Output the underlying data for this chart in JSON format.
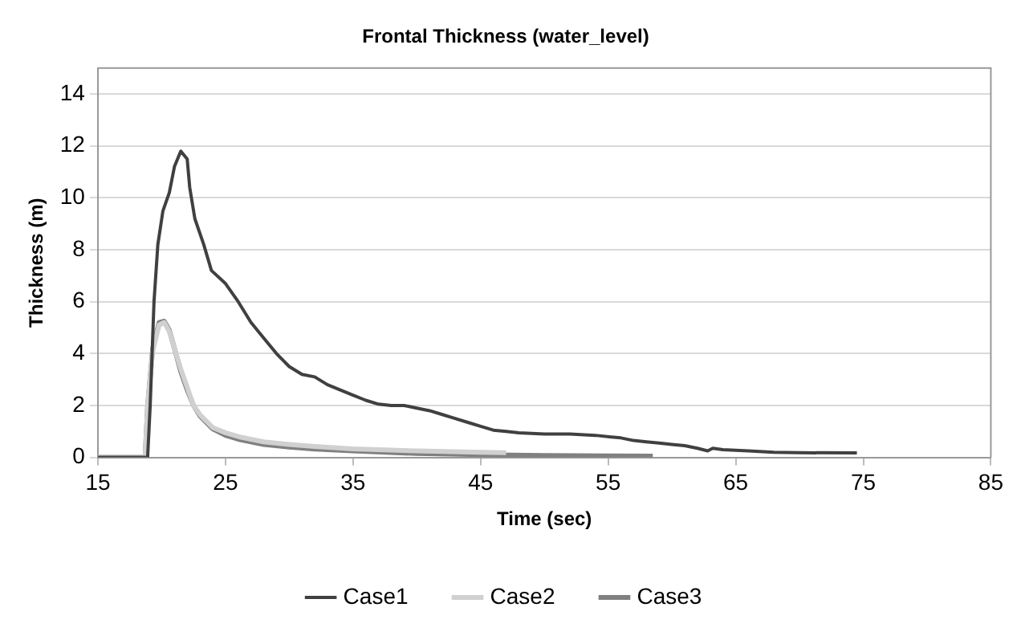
{
  "chart_data": {
    "type": "line",
    "title": "Frontal Thickness (water_level)",
    "xlabel": "Time (sec)",
    "ylabel": "Thickness (m)",
    "xlim": [
      15,
      85
    ],
    "xticks": [
      15,
      25,
      35,
      45,
      55,
      65,
      75,
      85
    ],
    "ylim": [
      0,
      15
    ],
    "yticks": [
      0,
      2,
      4,
      6,
      8,
      10,
      12,
      14
    ],
    "grid": "y",
    "legend": "bottom",
    "marker": "none",
    "line_style": "solid",
    "series": [
      {
        "name": "Case1",
        "color": "#404040",
        "x": [
          15,
          18.9,
          19.1,
          19.4,
          19.7,
          20.1,
          20.6,
          21.0,
          21.5,
          22.0,
          22.2,
          22.6,
          23.3,
          23.9,
          25,
          26,
          27,
          28,
          29,
          30,
          31,
          32,
          33,
          34,
          35,
          36,
          37,
          38,
          39,
          40,
          41,
          42,
          43,
          44,
          45,
          46,
          47,
          48,
          50,
          52,
          54,
          56,
          57,
          58,
          59,
          60,
          61,
          62,
          62.8,
          63.2,
          64,
          66,
          68,
          70,
          74.5
        ],
        "values": [
          0,
          0,
          2,
          6,
          8.2,
          9.5,
          10.2,
          11.2,
          11.8,
          11.5,
          10.4,
          9.2,
          8.2,
          7.2,
          6.7,
          6.0,
          5.2,
          4.6,
          4.0,
          3.5,
          3.2,
          3.1,
          2.8,
          2.6,
          2.4,
          2.2,
          2.05,
          2.0,
          2.0,
          1.9,
          1.8,
          1.65,
          1.5,
          1.35,
          1.2,
          1.05,
          1.0,
          0.95,
          0.9,
          0.9,
          0.85,
          0.75,
          0.65,
          0.6,
          0.55,
          0.5,
          0.45,
          0.35,
          0.25,
          0.35,
          0.3,
          0.25,
          0.2,
          0.18,
          0.17
        ]
      },
      {
        "name": "Case2",
        "color": "#d0d0d0",
        "x": [
          15,
          18.7,
          18.9,
          19.3,
          19.8,
          20.2,
          20.6,
          21,
          21.5,
          22,
          22.5,
          23,
          24,
          25,
          26,
          27,
          28,
          30,
          32,
          35,
          40,
          45,
          47
        ],
        "values": [
          0,
          0,
          2,
          4.1,
          5.1,
          5.2,
          4.85,
          4.2,
          3.4,
          2.7,
          2.0,
          1.65,
          1.15,
          0.95,
          0.8,
          0.7,
          0.6,
          0.5,
          0.42,
          0.33,
          0.25,
          0.2,
          0.18
        ]
      },
      {
        "name": "Case3",
        "color": "#808080",
        "x": [
          15,
          18.7,
          18.9,
          19.3,
          19.8,
          20.2,
          20.6,
          21,
          21.5,
          22,
          22.5,
          23,
          24,
          25,
          26,
          27,
          28,
          30,
          32,
          35,
          40,
          45,
          50,
          55,
          58.5
        ],
        "values": [
          0,
          0,
          2,
          4.2,
          5.2,
          5.25,
          4.9,
          4.2,
          3.3,
          2.6,
          2.0,
          1.6,
          1.1,
          0.85,
          0.7,
          0.6,
          0.5,
          0.4,
          0.32,
          0.25,
          0.15,
          0.1,
          0.07,
          0.06,
          0.05
        ]
      }
    ]
  }
}
